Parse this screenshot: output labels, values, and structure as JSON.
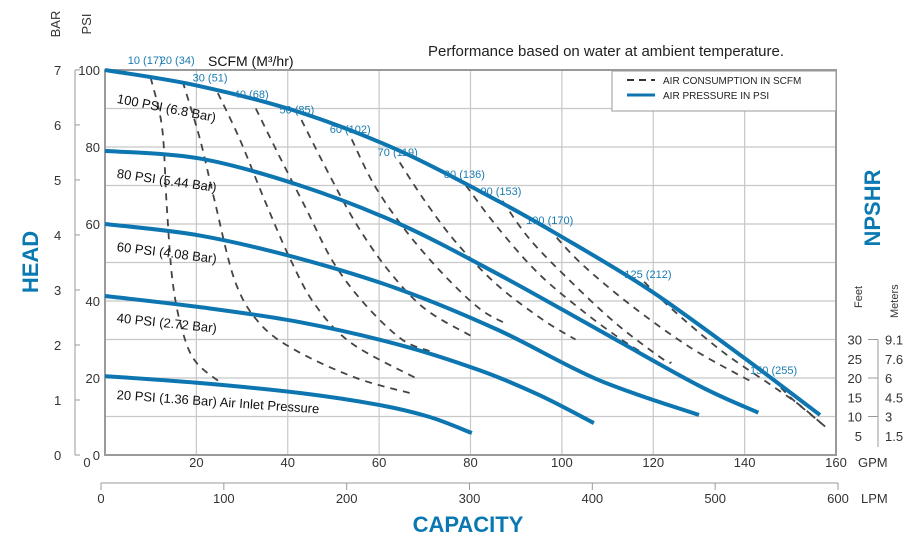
{
  "chart_data": {
    "type": "line",
    "title": "Performance based on water at ambient temperature.",
    "xlabel": "CAPACITY",
    "ylabel": "HEAD",
    "y2label": "NPSHR",
    "x_unit_primary": "GPM",
    "x_unit_secondary": "LPM",
    "y_unit_primary": "PSI",
    "y_unit_secondary": "BAR",
    "xlim": [
      0,
      160
    ],
    "ylim": [
      0,
      100
    ],
    "grid": true,
    "x_ticks": [
      0,
      20,
      40,
      60,
      80,
      100,
      120,
      140,
      160
    ],
    "x2_ticks": [
      0,
      100,
      200,
      300,
      400,
      500,
      600
    ],
    "y_ticks_psi": [
      0,
      20,
      40,
      60,
      80,
      100
    ],
    "y_ticks_bar": [
      0,
      1,
      2,
      3,
      4,
      5,
      6,
      7
    ],
    "npshr_feet": [
      30,
      25,
      20,
      15,
      10,
      5
    ],
    "npshr_meters": [
      "9.1",
      "7.6",
      "6",
      "4.5",
      "3",
      "1.5"
    ],
    "npshr_labels": {
      "feet": "Feet",
      "meters": "Meters"
    },
    "scfm_header": "SCFM (M³/hr)",
    "legend": {
      "position": "top-right",
      "entries": [
        {
          "label": "AIR CONSUMPTION IN SCFM",
          "style": "dashed"
        },
        {
          "label": "AIR PRESSURE IN PSI",
          "style": "solid"
        }
      ]
    },
    "pressure_series": [
      {
        "name": "100 PSI (6.8 Bar)",
        "points": [
          [
            0,
            100
          ],
          [
            20,
            96
          ],
          [
            42.7,
            89
          ],
          [
            64.5,
            79
          ],
          [
            86,
            66
          ],
          [
            99.5,
            57
          ],
          [
            119,
            43
          ],
          [
            139,
            26
          ],
          [
            156.5,
            10.4
          ]
        ]
      },
      {
        "name": "80 PSI (5.44 Bar)",
        "points": [
          [
            0,
            79
          ],
          [
            20.8,
            77
          ],
          [
            42.7,
            70
          ],
          [
            64.5,
            60
          ],
          [
            86,
            47
          ],
          [
            108,
            32.5
          ],
          [
            130,
            18
          ],
          [
            143,
            11
          ]
        ]
      },
      {
        "name": "60 PSI (4.08 Bar)",
        "points": [
          [
            0,
            60
          ],
          [
            20.8,
            57
          ],
          [
            42.7,
            51
          ],
          [
            64.5,
            43
          ],
          [
            86,
            32.5
          ],
          [
            108,
            19.5
          ],
          [
            130,
            10.4
          ]
        ]
      },
      {
        "name": "40 PSI (2.72 Bar)",
        "points": [
          [
            0,
            41.3
          ],
          [
            20.8,
            38.4
          ],
          [
            42.7,
            34.5
          ],
          [
            64.5,
            28.6
          ],
          [
            82,
            22
          ],
          [
            95,
            15.6
          ],
          [
            107,
            8.3
          ]
        ]
      },
      {
        "name": "20 PSI (1.36 Bar) Air Inlet Pressure",
        "points": [
          [
            0,
            20.5
          ],
          [
            20.8,
            18.7
          ],
          [
            42.7,
            16.1
          ],
          [
            60,
            13
          ],
          [
            71,
            9.9
          ],
          [
            80.3,
            5.7
          ]
        ]
      }
    ],
    "air_series": [
      {
        "name": "10 (17)",
        "points": [
          [
            10,
            98
          ],
          [
            12.5,
            85
          ],
          [
            13.5,
            65
          ],
          [
            14.8,
            45
          ],
          [
            17,
            32
          ],
          [
            20,
            24
          ],
          [
            26.3,
            18
          ]
        ]
      },
      {
        "name": "20 (34)",
        "points": [
          [
            17,
            97
          ],
          [
            20.8,
            82
          ],
          [
            24,
            66
          ],
          [
            28.5,
            45
          ],
          [
            34,
            34
          ],
          [
            42,
            27
          ],
          [
            55,
            20
          ],
          [
            67,
            16
          ]
        ]
      },
      {
        "name": "30 (51)",
        "points": [
          [
            24.7,
            94
          ],
          [
            29.5,
            82
          ],
          [
            35,
            66
          ],
          [
            40.5,
            51
          ],
          [
            46,
            39
          ],
          [
            54,
            29
          ],
          [
            68,
            20
          ]
        ]
      },
      {
        "name": "40 (68)",
        "points": [
          [
            33,
            90
          ],
          [
            38,
            78
          ],
          [
            44,
            64
          ],
          [
            50,
            50
          ],
          [
            57,
            39
          ],
          [
            65,
            30
          ],
          [
            71,
            27
          ]
        ]
      },
      {
        "name": "50 (85)",
        "points": [
          [
            43,
            87
          ],
          [
            49,
            73
          ],
          [
            55,
            60
          ],
          [
            62,
            48
          ],
          [
            70,
            38
          ],
          [
            80,
            31
          ]
        ]
      },
      {
        "name": "60 (102)",
        "points": [
          [
            54,
            82
          ],
          [
            59,
            70
          ],
          [
            66,
            58
          ],
          [
            74,
            47
          ],
          [
            82,
            38
          ],
          [
            88,
            34
          ]
        ]
      },
      {
        "name": "70 (119)",
        "points": [
          [
            64.5,
            76
          ],
          [
            70,
            66
          ],
          [
            77,
            55
          ],
          [
            86,
            44
          ],
          [
            96,
            35
          ],
          [
            103,
            30
          ]
        ]
      },
      {
        "name": "80 (136)",
        "points": [
          [
            79,
            70
          ],
          [
            86,
            59
          ],
          [
            95,
            47
          ],
          [
            105,
            37
          ],
          [
            113,
            30
          ],
          [
            117,
            27
          ]
        ]
      },
      {
        "name": "90 (153)",
        "points": [
          [
            87,
            66
          ],
          [
            93,
            56
          ],
          [
            102,
            45
          ],
          [
            112,
            34
          ],
          [
            122,
            25
          ],
          [
            124,
            24
          ]
        ]
      },
      {
        "name": "100 (170)",
        "points": [
          [
            97,
            59
          ],
          [
            104,
            50
          ],
          [
            115,
            39
          ],
          [
            128,
            28
          ],
          [
            140,
            20
          ],
          [
            142,
            19
          ]
        ]
      },
      {
        "name": "125 (212)",
        "points": [
          [
            118,
            45
          ],
          [
            124,
            38
          ],
          [
            135,
            27
          ],
          [
            146,
            18
          ],
          [
            152,
            13
          ],
          [
            157,
            8
          ]
        ]
      },
      {
        "name": "150 (255)",
        "points": [
          [
            146,
            20
          ],
          [
            150,
            15
          ],
          [
            155,
            10
          ],
          [
            158,
            7
          ]
        ]
      }
    ],
    "air_label_positions_gpm": [
      [
        "10 (17)",
        9.8,
        101.5
      ],
      [
        "20 (34)",
        16.8,
        101.5
      ],
      [
        "30 (51)",
        24,
        97
      ],
      [
        "40 (68)",
        33,
        92.7
      ],
      [
        "50 (85)",
        43,
        88.7
      ],
      [
        "60 (102)",
        54,
        83.7
      ],
      [
        "70 (119)",
        64.5,
        77.7
      ],
      [
        "80 (136)",
        79,
        72
      ],
      [
        "90 (153)",
        87,
        67.5
      ],
      [
        "100 (170)",
        97,
        60
      ],
      [
        "125 (212)",
        118.5,
        46
      ],
      [
        "150 (255)",
        146,
        21
      ]
    ]
  },
  "colors": {
    "accent": "#0a79b2",
    "curve": "#0d76b0",
    "dash": "#444444",
    "grid": "#c8c8c8",
    "frame": "#9a9a9a"
  }
}
